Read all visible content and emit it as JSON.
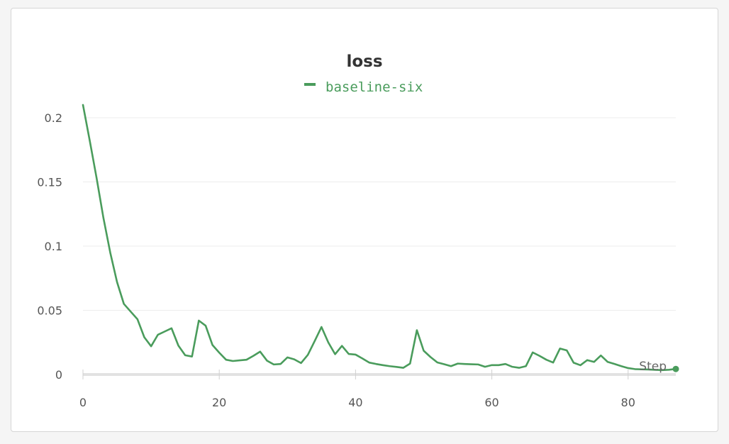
{
  "panel": {
    "title": "loss"
  },
  "chart_data": {
    "type": "line",
    "title": "loss",
    "xlabel": "Step",
    "ylabel": "",
    "xlim": [
      0,
      87
    ],
    "ylim": [
      0,
      0.2
    ],
    "x_ticks": [
      0,
      20,
      40,
      60,
      80
    ],
    "y_ticks": [
      0,
      0.05,
      0.1,
      0.15,
      0.2
    ],
    "x_tick_labels": [
      "0",
      "20",
      "40",
      "60",
      "80"
    ],
    "y_tick_labels": [
      "0",
      "0.05",
      "0.1",
      "0.15",
      "0.2"
    ],
    "grid": "horizontal",
    "legend": "top-center",
    "series": [
      {
        "name": "baseline-six",
        "color": "#4a9c5c",
        "x": [
          0,
          1,
          2,
          3,
          4,
          5,
          6,
          7,
          8,
          9,
          10,
          11,
          12,
          13,
          14,
          15,
          16,
          17,
          18,
          19,
          20,
          21,
          22,
          23,
          24,
          25,
          26,
          27,
          28,
          29,
          30,
          31,
          32,
          33,
          34,
          35,
          36,
          37,
          38,
          39,
          40,
          41,
          42,
          43,
          44,
          45,
          46,
          47,
          48,
          49,
          50,
          51,
          52,
          53,
          54,
          55,
          56,
          57,
          58,
          59,
          60,
          61,
          62,
          63,
          64,
          65,
          66,
          67,
          68,
          69,
          70,
          71,
          72,
          73,
          74,
          75,
          76,
          77,
          78,
          79,
          80,
          81,
          82,
          83,
          84,
          85,
          86,
          87
        ],
        "values": [
          0.21,
          0.182,
          0.153,
          0.122,
          0.095,
          0.072,
          0.055,
          0.049,
          0.043,
          0.029,
          0.022,
          0.031,
          0.0335,
          0.036,
          0.0225,
          0.015,
          0.014,
          0.042,
          0.038,
          0.023,
          0.017,
          0.0115,
          0.0105,
          0.011,
          0.0115,
          0.0145,
          0.0178,
          0.0108,
          0.0078,
          0.0082,
          0.0133,
          0.0118,
          0.0089,
          0.0153,
          0.026,
          0.037,
          0.025,
          0.0158,
          0.0223,
          0.016,
          0.0155,
          0.0125,
          0.0093,
          0.0082,
          0.0073,
          0.0065,
          0.0059,
          0.0052,
          0.0085,
          0.0345,
          0.0185,
          0.0136,
          0.0094,
          0.008,
          0.0065,
          0.0085,
          0.0082,
          0.008,
          0.0078,
          0.006,
          0.0073,
          0.0073,
          0.0082,
          0.006,
          0.0052,
          0.0065,
          0.0172,
          0.0145,
          0.0115,
          0.0093,
          0.0202,
          0.0188,
          0.0092,
          0.0072,
          0.0112,
          0.0098,
          0.0148,
          0.0098,
          0.0082,
          0.0065,
          0.005,
          0.0042,
          0.004,
          0.0039,
          0.0036,
          0.0034,
          0.0037,
          0.0043
        ]
      }
    ]
  }
}
